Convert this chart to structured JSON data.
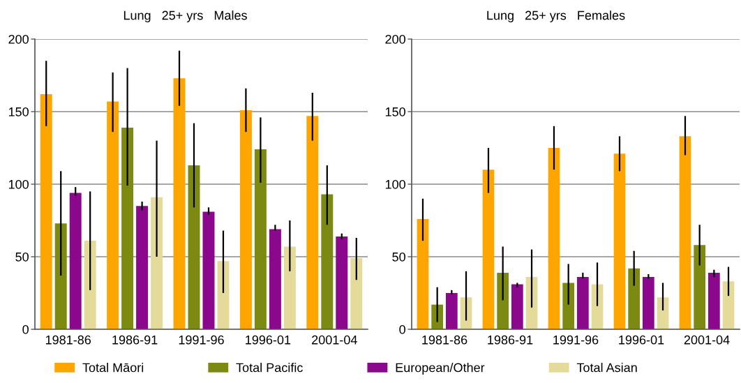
{
  "chart_data": [
    {
      "type": "bar",
      "title": "Lung   25+ yrs   Males",
      "categories": [
        "1981-86",
        "1986-91",
        "1991-96",
        "1996-01",
        "2001-04"
      ],
      "series": [
        {
          "name": "Total Māori",
          "color": "#ffa500",
          "values": [
            162,
            157,
            173,
            151,
            147
          ],
          "errors": [
            [
              140,
              185
            ],
            [
              136,
              177
            ],
            [
              154,
              192
            ],
            [
              136,
              166
            ],
            [
              130,
              163
            ]
          ]
        },
        {
          "name": "Total Pacific",
          "color": "#7d8a12",
          "values": [
            73,
            139,
            113,
            124,
            93
          ],
          "errors": [
            [
              37,
              109
            ],
            [
              99,
              180
            ],
            [
              84,
              142
            ],
            [
              101,
              146
            ],
            [
              72,
              113
            ]
          ]
        },
        {
          "name": "European/Other",
          "color": "#8b078b",
          "values": [
            94,
            85,
            81,
            69,
            64
          ],
          "errors": [
            [
              92,
              98
            ],
            [
              82,
              88
            ],
            [
              79,
              84
            ],
            [
              68,
              72
            ],
            [
              62,
              66
            ]
          ]
        },
        {
          "name": "Total Asian",
          "color": "#e4db9b",
          "values": [
            61,
            91,
            47,
            57,
            49
          ],
          "errors": [
            [
              27,
              95
            ],
            [
              50,
              130
            ],
            [
              25,
              68
            ],
            [
              40,
              75
            ],
            [
              34,
              63
            ]
          ]
        }
      ],
      "ylim": [
        0,
        200
      ],
      "yticks": [
        0,
        50,
        100,
        150,
        200
      ],
      "grid": "y",
      "legend": "bottom"
    },
    {
      "type": "bar",
      "title": "Lung   25+ yrs   Females",
      "categories": [
        "1981-86",
        "1986-91",
        "1991-96",
        "1996-01",
        "2001-04"
      ],
      "series": [
        {
          "color": "#ffa500",
          "values": [
            76,
            110,
            125,
            121,
            133
          ],
          "errors": [
            [
              61,
              90
            ],
            [
              94,
              125
            ],
            [
              110,
              140
            ],
            [
              109,
              133
            ],
            [
              120,
              147
            ]
          ]
        },
        {
          "color": "#7d8a12",
          "values": [
            17,
            39,
            32,
            42,
            58
          ],
          "errors": [
            [
              5,
              29
            ],
            [
              20,
              57
            ],
            [
              17,
              45
            ],
            [
              30,
              54
            ],
            [
              44,
              72
            ]
          ]
        },
        {
          "color": "#8b078b",
          "values": [
            25,
            31,
            36,
            36,
            39
          ],
          "errors": [
            [
              24,
              27
            ],
            [
              29,
              32
            ],
            [
              35,
              39
            ],
            [
              35,
              38
            ],
            [
              36,
              41
            ]
          ]
        },
        {
          "color": "#e4db9b",
          "values": [
            22,
            36,
            31,
            22,
            33
          ],
          "errors": [
            [
              6,
              40
            ],
            [
              15,
              55
            ],
            [
              16,
              46
            ],
            [
              13,
              32
            ],
            [
              23,
              43
            ]
          ]
        }
      ],
      "ylim": [
        0,
        200
      ],
      "yticks": [
        0,
        50,
        100,
        150,
        200
      ],
      "grid": "y"
    }
  ]
}
